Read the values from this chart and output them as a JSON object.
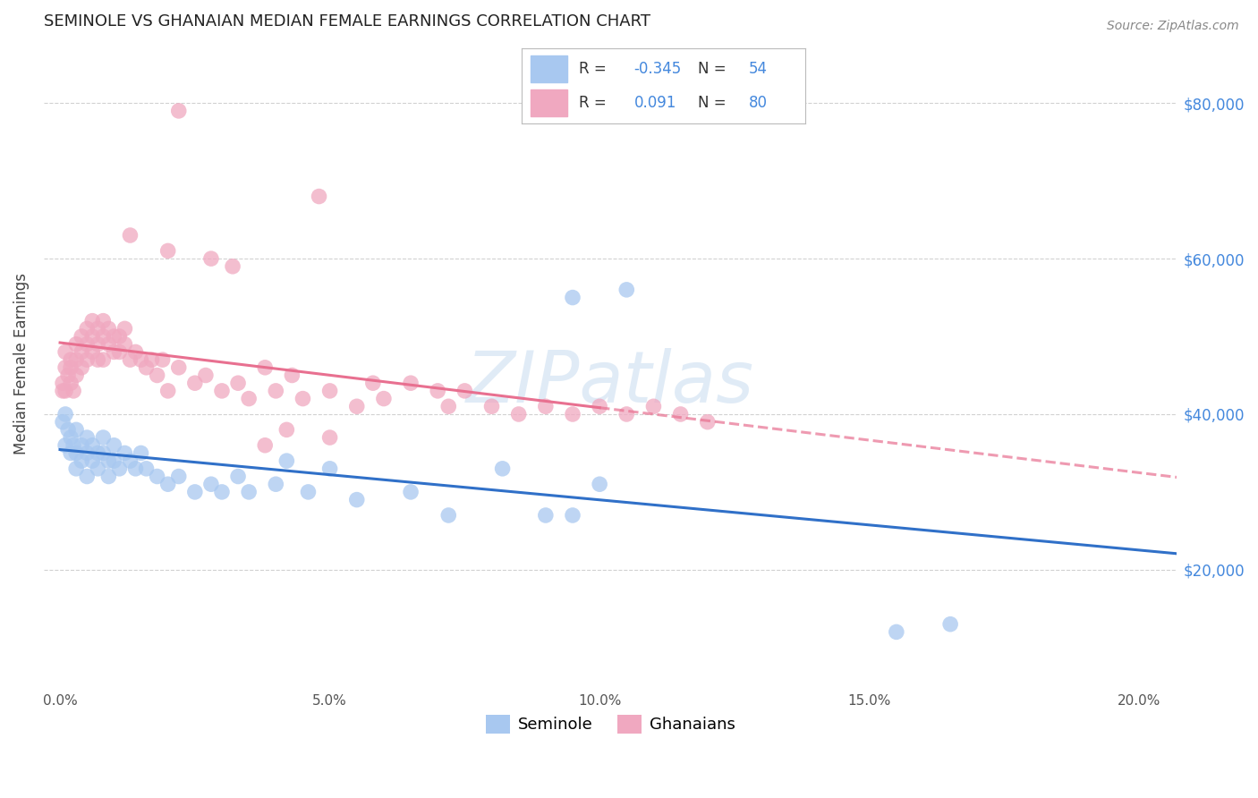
{
  "title": "SEMINOLE VS GHANAIAN MEDIAN FEMALE EARNINGS CORRELATION CHART",
  "source": "Source: ZipAtlas.com",
  "ylabel": "Median Female Earnings",
  "seminole_color": "#A8C8F0",
  "ghanaian_color": "#F0A8C0",
  "seminole_line_color": "#3070C8",
  "ghanaian_line_color": "#E87090",
  "right_tick_color": "#4488DD",
  "watermark_color": "#C8DCF0",
  "seminole_R": "-0.345",
  "seminole_N": "54",
  "ghanaian_R": "0.091",
  "ghanaian_N": "80",
  "xlim": [
    -0.003,
    0.207
  ],
  "ylim": [
    5000,
    88000
  ],
  "xticks": [
    0.0,
    0.05,
    0.1,
    0.15,
    0.2
  ],
  "xtick_labels": [
    "0.0%",
    "5.0%",
    "10.0%",
    "15.0%",
    "20.0%"
  ],
  "yticks": [
    20000,
    40000,
    60000,
    80000
  ],
  "ytick_labels": [
    "$20,000",
    "$40,000",
    "$60,000",
    "$80,000"
  ],
  "sem_x": [
    0.0005,
    0.001,
    0.001,
    0.0015,
    0.002,
    0.002,
    0.0025,
    0.003,
    0.003,
    0.003,
    0.004,
    0.004,
    0.005,
    0.005,
    0.005,
    0.006,
    0.006,
    0.007,
    0.007,
    0.008,
    0.008,
    0.009,
    0.009,
    0.01,
    0.01,
    0.011,
    0.012,
    0.013,
    0.014,
    0.015,
    0.016,
    0.018,
    0.02,
    0.022,
    0.025,
    0.028,
    0.03,
    0.033,
    0.035,
    0.04,
    0.042,
    0.046,
    0.05,
    0.055,
    0.065,
    0.072,
    0.082,
    0.09,
    0.095,
    0.1,
    0.095,
    0.105,
    0.155,
    0.165
  ],
  "sem_y": [
    39000,
    36000,
    40000,
    38000,
    37000,
    35000,
    36000,
    38000,
    35000,
    33000,
    36000,
    34000,
    37000,
    35000,
    32000,
    36000,
    34000,
    35000,
    33000,
    35000,
    37000,
    34000,
    32000,
    36000,
    34000,
    33000,
    35000,
    34000,
    33000,
    35000,
    33000,
    32000,
    31000,
    32000,
    30000,
    31000,
    30000,
    32000,
    30000,
    31000,
    34000,
    30000,
    33000,
    29000,
    30000,
    27000,
    33000,
    27000,
    27000,
    31000,
    55000,
    56000,
    12000,
    13000
  ],
  "gha_x": [
    0.0005,
    0.0005,
    0.001,
    0.001,
    0.001,
    0.0015,
    0.002,
    0.002,
    0.002,
    0.0025,
    0.003,
    0.003,
    0.003,
    0.004,
    0.004,
    0.004,
    0.005,
    0.005,
    0.005,
    0.006,
    0.006,
    0.006,
    0.007,
    0.007,
    0.007,
    0.008,
    0.008,
    0.008,
    0.009,
    0.009,
    0.01,
    0.01,
    0.011,
    0.011,
    0.012,
    0.012,
    0.013,
    0.014,
    0.015,
    0.016,
    0.017,
    0.018,
    0.019,
    0.02,
    0.022,
    0.025,
    0.027,
    0.03,
    0.033,
    0.035,
    0.038,
    0.04,
    0.043,
    0.045,
    0.05,
    0.055,
    0.058,
    0.06,
    0.065,
    0.07,
    0.072,
    0.075,
    0.08,
    0.085,
    0.09,
    0.095,
    0.1,
    0.105,
    0.11,
    0.115,
    0.12,
    0.022,
    0.048,
    0.013,
    0.02,
    0.028,
    0.032,
    0.038,
    0.042,
    0.05
  ],
  "gha_y": [
    43000,
    44000,
    43000,
    46000,
    48000,
    45000,
    44000,
    47000,
    46000,
    43000,
    49000,
    47000,
    45000,
    50000,
    48000,
    46000,
    51000,
    49000,
    47000,
    52000,
    50000,
    48000,
    51000,
    49000,
    47000,
    52000,
    50000,
    47000,
    51000,
    49000,
    50000,
    48000,
    50000,
    48000,
    51000,
    49000,
    47000,
    48000,
    47000,
    46000,
    47000,
    45000,
    47000,
    43000,
    46000,
    44000,
    45000,
    43000,
    44000,
    42000,
    46000,
    43000,
    45000,
    42000,
    43000,
    41000,
    44000,
    42000,
    44000,
    43000,
    41000,
    43000,
    41000,
    40000,
    41000,
    40000,
    41000,
    40000,
    41000,
    40000,
    39000,
    79000,
    68000,
    63000,
    61000,
    60000,
    59000,
    36000,
    38000,
    37000
  ]
}
